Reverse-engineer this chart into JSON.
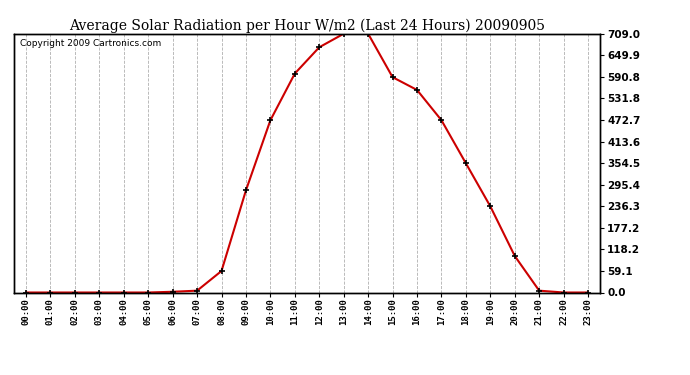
{
  "title": "Average Solar Radiation per Hour W/m2 (Last 24 Hours) 20090905",
  "copyright": "Copyright 2009 Cartronics.com",
  "hours": [
    "00:00",
    "01:00",
    "02:00",
    "03:00",
    "04:00",
    "05:00",
    "06:00",
    "07:00",
    "08:00",
    "09:00",
    "10:00",
    "11:00",
    "12:00",
    "13:00",
    "14:00",
    "15:00",
    "16:00",
    "17:00",
    "18:00",
    "19:00",
    "20:00",
    "21:00",
    "22:00",
    "23:00"
  ],
  "values": [
    0,
    0,
    0,
    0,
    0,
    0,
    2,
    5,
    59,
    280,
    472,
    600,
    672,
    709,
    709,
    590,
    555,
    472,
    354,
    236,
    100,
    5,
    0,
    0
  ],
  "line_color": "#cc0000",
  "marker": "+",
  "marker_color": "#000000",
  "bg_color": "#ffffff",
  "grid_color": "#b0b0b0",
  "title_fontsize": 10,
  "ylabel_ticks": [
    0.0,
    59.1,
    118.2,
    177.2,
    236.3,
    295.4,
    354.5,
    413.6,
    472.7,
    531.8,
    590.8,
    649.9,
    709.0
  ],
  "ylim": [
    0,
    709.0
  ],
  "copyright_fontsize": 6.5,
  "fig_width": 6.9,
  "fig_height": 3.75,
  "dpi": 100
}
